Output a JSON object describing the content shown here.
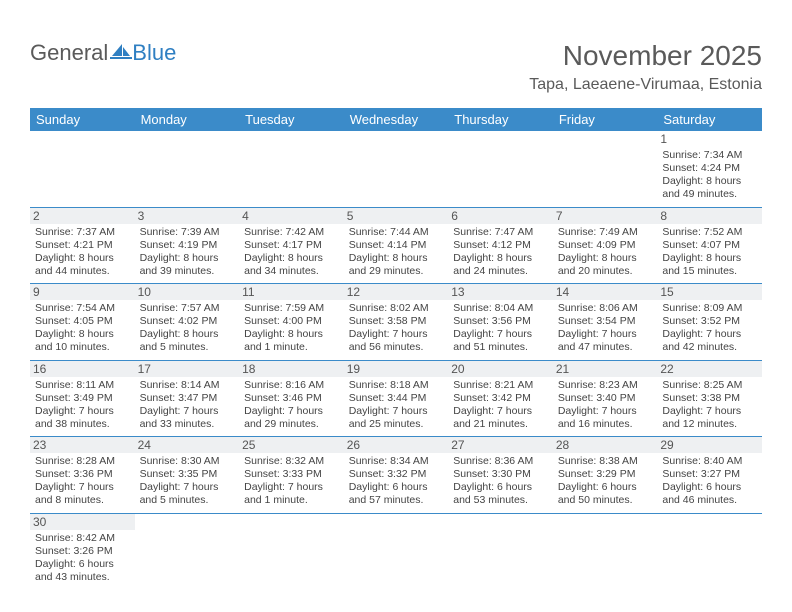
{
  "logo": {
    "text1": "General",
    "text2": "Blue"
  },
  "title": "November 2025",
  "location": "Tapa, Laeaene-Virumaa, Estonia",
  "calendar": {
    "day_headers": [
      "Sunday",
      "Monday",
      "Tuesday",
      "Wednesday",
      "Thursday",
      "Friday",
      "Saturday"
    ],
    "header_bg": "#3b8bc9",
    "header_fg": "#ffffff",
    "border_color": "#3b8bc9",
    "grey_band": "#eef0f2",
    "text_color": "#444444",
    "weeks": [
      [
        null,
        null,
        null,
        null,
        null,
        null,
        {
          "n": "1",
          "sunrise": "Sunrise: 7:34 AM",
          "sunset": "Sunset: 4:24 PM",
          "daylight": "Daylight: 8 hours and 49 minutes.",
          "plain": true
        }
      ],
      [
        {
          "n": "2",
          "sunrise": "Sunrise: 7:37 AM",
          "sunset": "Sunset: 4:21 PM",
          "daylight": "Daylight: 8 hours and 44 minutes."
        },
        {
          "n": "3",
          "sunrise": "Sunrise: 7:39 AM",
          "sunset": "Sunset: 4:19 PM",
          "daylight": "Daylight: 8 hours and 39 minutes."
        },
        {
          "n": "4",
          "sunrise": "Sunrise: 7:42 AM",
          "sunset": "Sunset: 4:17 PM",
          "daylight": "Daylight: 8 hours and 34 minutes."
        },
        {
          "n": "5",
          "sunrise": "Sunrise: 7:44 AM",
          "sunset": "Sunset: 4:14 PM",
          "daylight": "Daylight: 8 hours and 29 minutes."
        },
        {
          "n": "6",
          "sunrise": "Sunrise: 7:47 AM",
          "sunset": "Sunset: 4:12 PM",
          "daylight": "Daylight: 8 hours and 24 minutes."
        },
        {
          "n": "7",
          "sunrise": "Sunrise: 7:49 AM",
          "sunset": "Sunset: 4:09 PM",
          "daylight": "Daylight: 8 hours and 20 minutes."
        },
        {
          "n": "8",
          "sunrise": "Sunrise: 7:52 AM",
          "sunset": "Sunset: 4:07 PM",
          "daylight": "Daylight: 8 hours and 15 minutes."
        }
      ],
      [
        {
          "n": "9",
          "sunrise": "Sunrise: 7:54 AM",
          "sunset": "Sunset: 4:05 PM",
          "daylight": "Daylight: 8 hours and 10 minutes."
        },
        {
          "n": "10",
          "sunrise": "Sunrise: 7:57 AM",
          "sunset": "Sunset: 4:02 PM",
          "daylight": "Daylight: 8 hours and 5 minutes."
        },
        {
          "n": "11",
          "sunrise": "Sunrise: 7:59 AM",
          "sunset": "Sunset: 4:00 PM",
          "daylight": "Daylight: 8 hours and 1 minute."
        },
        {
          "n": "12",
          "sunrise": "Sunrise: 8:02 AM",
          "sunset": "Sunset: 3:58 PM",
          "daylight": "Daylight: 7 hours and 56 minutes."
        },
        {
          "n": "13",
          "sunrise": "Sunrise: 8:04 AM",
          "sunset": "Sunset: 3:56 PM",
          "daylight": "Daylight: 7 hours and 51 minutes."
        },
        {
          "n": "14",
          "sunrise": "Sunrise: 8:06 AM",
          "sunset": "Sunset: 3:54 PM",
          "daylight": "Daylight: 7 hours and 47 minutes."
        },
        {
          "n": "15",
          "sunrise": "Sunrise: 8:09 AM",
          "sunset": "Sunset: 3:52 PM",
          "daylight": "Daylight: 7 hours and 42 minutes."
        }
      ],
      [
        {
          "n": "16",
          "sunrise": "Sunrise: 8:11 AM",
          "sunset": "Sunset: 3:49 PM",
          "daylight": "Daylight: 7 hours and 38 minutes."
        },
        {
          "n": "17",
          "sunrise": "Sunrise: 8:14 AM",
          "sunset": "Sunset: 3:47 PM",
          "daylight": "Daylight: 7 hours and 33 minutes."
        },
        {
          "n": "18",
          "sunrise": "Sunrise: 8:16 AM",
          "sunset": "Sunset: 3:46 PM",
          "daylight": "Daylight: 7 hours and 29 minutes."
        },
        {
          "n": "19",
          "sunrise": "Sunrise: 8:18 AM",
          "sunset": "Sunset: 3:44 PM",
          "daylight": "Daylight: 7 hours and 25 minutes."
        },
        {
          "n": "20",
          "sunrise": "Sunrise: 8:21 AM",
          "sunset": "Sunset: 3:42 PM",
          "daylight": "Daylight: 7 hours and 21 minutes."
        },
        {
          "n": "21",
          "sunrise": "Sunrise: 8:23 AM",
          "sunset": "Sunset: 3:40 PM",
          "daylight": "Daylight: 7 hours and 16 minutes."
        },
        {
          "n": "22",
          "sunrise": "Sunrise: 8:25 AM",
          "sunset": "Sunset: 3:38 PM",
          "daylight": "Daylight: 7 hours and 12 minutes."
        }
      ],
      [
        {
          "n": "23",
          "sunrise": "Sunrise: 8:28 AM",
          "sunset": "Sunset: 3:36 PM",
          "daylight": "Daylight: 7 hours and 8 minutes."
        },
        {
          "n": "24",
          "sunrise": "Sunrise: 8:30 AM",
          "sunset": "Sunset: 3:35 PM",
          "daylight": "Daylight: 7 hours and 5 minutes."
        },
        {
          "n": "25",
          "sunrise": "Sunrise: 8:32 AM",
          "sunset": "Sunset: 3:33 PM",
          "daylight": "Daylight: 7 hours and 1 minute."
        },
        {
          "n": "26",
          "sunrise": "Sunrise: 8:34 AM",
          "sunset": "Sunset: 3:32 PM",
          "daylight": "Daylight: 6 hours and 57 minutes."
        },
        {
          "n": "27",
          "sunrise": "Sunrise: 8:36 AM",
          "sunset": "Sunset: 3:30 PM",
          "daylight": "Daylight: 6 hours and 53 minutes."
        },
        {
          "n": "28",
          "sunrise": "Sunrise: 8:38 AM",
          "sunset": "Sunset: 3:29 PM",
          "daylight": "Daylight: 6 hours and 50 minutes."
        },
        {
          "n": "29",
          "sunrise": "Sunrise: 8:40 AM",
          "sunset": "Sunset: 3:27 PM",
          "daylight": "Daylight: 6 hours and 46 minutes."
        }
      ],
      [
        {
          "n": "30",
          "sunrise": "Sunrise: 8:42 AM",
          "sunset": "Sunset: 3:26 PM",
          "daylight": "Daylight: 6 hours and 43 minutes."
        },
        null,
        null,
        null,
        null,
        null,
        null
      ]
    ]
  }
}
